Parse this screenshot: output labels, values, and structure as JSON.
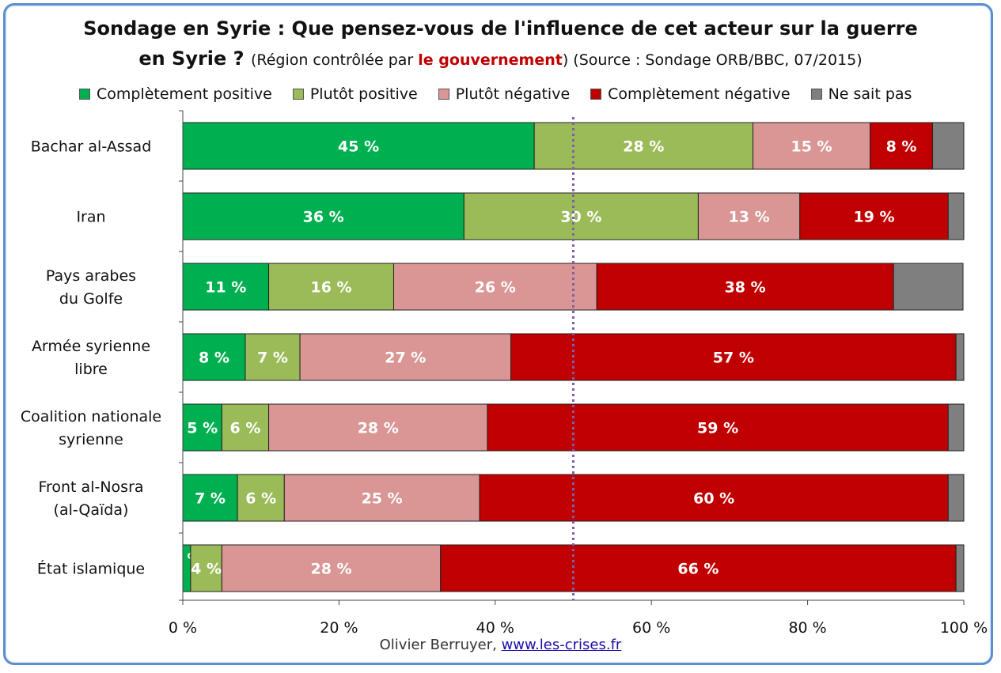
{
  "title": {
    "line1": "Sondage en Syrie : Que pensez-vous de l'influence de cet acteur sur la guerre",
    "line2_main": "en Syrie ?",
    "line2_pre": "(Région contrôlée par ",
    "line2_highlight": "le gouvernement",
    "line2_post": ") (Source : Sondage ORB/BBC, 07/2015)"
  },
  "credit": {
    "author": "Olivier Berruyer,",
    "link": "www.les-crises.fr"
  },
  "chart_data": {
    "type": "bar",
    "orientation": "horizontal",
    "stacked": true,
    "categories": [
      "Bachar al-Assad",
      "Iran",
      "Pays arabes du Golfe",
      "Armée syrienne libre",
      "Coalition nationale syrienne",
      "Front al-Nosra (al-Qaïda)",
      "État islamique"
    ],
    "category_lines": [
      [
        "Bachar al-Assad"
      ],
      [
        "Iran"
      ],
      [
        "Pays arabes",
        "du Golfe"
      ],
      [
        "Armée syrienne",
        "libre"
      ],
      [
        "Coalition nationale",
        "syrienne"
      ],
      [
        "Front al-Nosra",
        "(al-Qaïda)"
      ],
      [
        "État islamique"
      ]
    ],
    "series": [
      {
        "name": "Complètement positive",
        "color": "#00b050",
        "values": [
          45,
          36,
          11,
          8,
          5,
          7,
          1
        ]
      },
      {
        "name": "Plutôt positive",
        "color": "#9bbb59",
        "values": [
          28,
          30,
          16,
          7,
          6,
          6,
          4
        ]
      },
      {
        "name": "Plutôt négative",
        "color": "#d99694",
        "values": [
          15,
          13,
          26,
          27,
          28,
          25,
          28
        ]
      },
      {
        "name": "Complètement négative",
        "color": "#c00000",
        "values": [
          8,
          19,
          38,
          57,
          59,
          60,
          66
        ]
      },
      {
        "name": "Ne sait pas",
        "color": "#7f7f7f",
        "values": [
          4.7,
          2.4,
          8.9,
          1.5,
          2.2,
          2.1,
          1.4
        ]
      }
    ],
    "label_format": "{v} %",
    "xlim": [
      0,
      100
    ],
    "xticks": [
      0,
      20,
      40,
      60,
      80,
      100
    ],
    "xtick_labels": [
      "0 %",
      "20 %",
      "40 %",
      "60 %",
      "80 %",
      "100 %"
    ],
    "reference_line": {
      "x": 50,
      "style": "dotted",
      "color": "#7f60a8"
    },
    "grid": false,
    "legend_position": "top"
  }
}
